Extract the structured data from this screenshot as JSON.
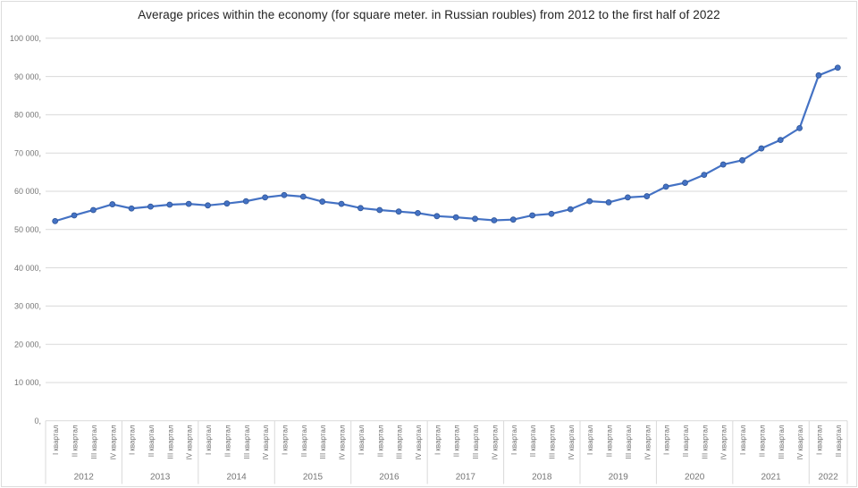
{
  "chart_data": {
    "type": "line",
    "title": "Average prices within the economy (for square meter. in Russian roubles) from 2012 to the first half of 2022",
    "xlabel": "",
    "ylabel": "",
    "ylim": [
      0,
      100000
    ],
    "y_tick_interval": 10000,
    "y_tick_labels": [
      "0,",
      "10 000,",
      "20 000,",
      "30 000,",
      "40 000,",
      "50 000,",
      "60 000,",
      "70 000,",
      "80 000,",
      "90 000,",
      "100 000,"
    ],
    "grid": true,
    "legend": false,
    "x_groups": [
      {
        "year": "2012",
        "quarters": [
          "I квартал",
          "II квартал",
          "III квартал",
          "IV квартал"
        ],
        "values": [
          52200,
          53700,
          55100,
          56600
        ]
      },
      {
        "year": "2013",
        "quarters": [
          "I квартал",
          "II квартал",
          "III квартал",
          "IV квартал"
        ],
        "values": [
          55500,
          56000,
          56500,
          56700
        ]
      },
      {
        "year": "2014",
        "quarters": [
          "I квартал",
          "II квартал",
          "III квартал",
          "IV квартал"
        ],
        "values": [
          56300,
          56800,
          57400,
          58400
        ]
      },
      {
        "year": "2015",
        "quarters": [
          "I квартал",
          "II квартал",
          "III квартал",
          "IV квартал"
        ],
        "values": [
          59000,
          58600,
          57300,
          56700
        ]
      },
      {
        "year": "2016",
        "quarters": [
          "I квартал",
          "II квартал",
          "III квартал",
          "IV квартал"
        ],
        "values": [
          55600,
          55100,
          54700,
          54300
        ]
      },
      {
        "year": "2017",
        "quarters": [
          "I квартал",
          "II квартал",
          "III квартал",
          "IV квартал"
        ],
        "values": [
          53500,
          53200,
          52800,
          52400
        ]
      },
      {
        "year": "2018",
        "quarters": [
          "I квартал",
          "II квартал",
          "III квартал",
          "IV квартал"
        ],
        "values": [
          52600,
          53700,
          54100,
          55300
        ]
      },
      {
        "year": "2019",
        "quarters": [
          "I квартал",
          "II квартал",
          "III квартал",
          "IV квартал"
        ],
        "values": [
          57400,
          57100,
          58400,
          58700
        ]
      },
      {
        "year": "2020",
        "quarters": [
          "I квартал",
          "II квартал",
          "III квартал",
          "IV квартал"
        ],
        "values": [
          61200,
          62200,
          64300,
          67000
        ]
      },
      {
        "year": "2021",
        "quarters": [
          "I квартал",
          "II квартал",
          "III квартал",
          "IV квартал"
        ],
        "values": [
          68100,
          71200,
          73400,
          76500
        ]
      },
      {
        "year": "2022",
        "quarters": [
          "I квартал",
          "II квартал"
        ],
        "values": [
          90300,
          92300
        ]
      }
    ],
    "colors": {
      "line": "#4472C4",
      "marker_fill": "#4472C4",
      "marker_edge": "#2F5597",
      "grid": "#DADADA",
      "axis": "#D9D9D9",
      "tick_text": "#757575",
      "title_text": "#232323",
      "background": "#FFFFFF",
      "border": "#DCDCDC"
    }
  }
}
